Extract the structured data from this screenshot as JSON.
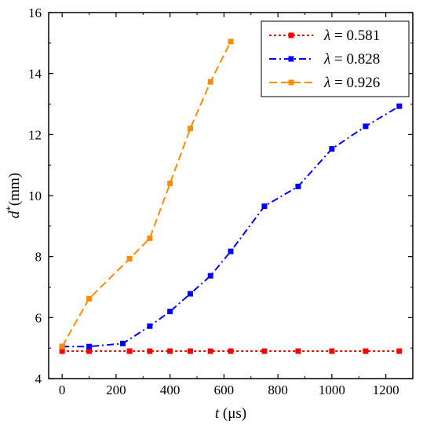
{
  "chart_data": {
    "type": "line",
    "title": "",
    "xlabel": {
      "var": "t",
      "unit": " (μs)"
    },
    "ylabel": {
      "var": "d",
      "sup": "*",
      "unit": "(mm)"
    },
    "xlim": [
      -50,
      1300
    ],
    "ylim": [
      4,
      16
    ],
    "xticks": [
      0,
      200,
      400,
      600,
      800,
      1000,
      1200
    ],
    "yticks": [
      4,
      6,
      8,
      10,
      12,
      14,
      16
    ],
    "grid": false,
    "legend": "top-right",
    "series": [
      {
        "name_var": "λ",
        "name_value": " = 0.581",
        "color": "#ff0000",
        "dash": "3,3",
        "x": [
          0,
          100,
          250,
          325,
          400,
          475,
          550,
          625,
          750,
          875,
          1000,
          1125,
          1250
        ],
        "y": [
          4.9,
          4.9,
          4.9,
          4.9,
          4.9,
          4.9,
          4.9,
          4.9,
          4.9,
          4.9,
          4.9,
          4.9,
          4.9
        ]
      },
      {
        "name_var": "λ",
        "name_value": " = 0.828",
        "color": "#0000ff",
        "dash": "9,4,2,4",
        "x": [
          0,
          100,
          225,
          325,
          400,
          475,
          550,
          625,
          750,
          875,
          1000,
          1125,
          1250
        ],
        "y": [
          5.05,
          5.05,
          5.15,
          5.72,
          6.2,
          6.78,
          7.37,
          8.17,
          9.65,
          10.3,
          11.53,
          12.27,
          12.93
        ]
      },
      {
        "name_var": "λ",
        "name_value": " = 0.926",
        "color": "#ff8c00",
        "dash": "10,5",
        "x": [
          0,
          100,
          250,
          325,
          400,
          475,
          550,
          625
        ],
        "y": [
          5.05,
          6.62,
          7.93,
          8.6,
          10.4,
          12.2,
          13.73,
          15.05
        ]
      }
    ]
  }
}
